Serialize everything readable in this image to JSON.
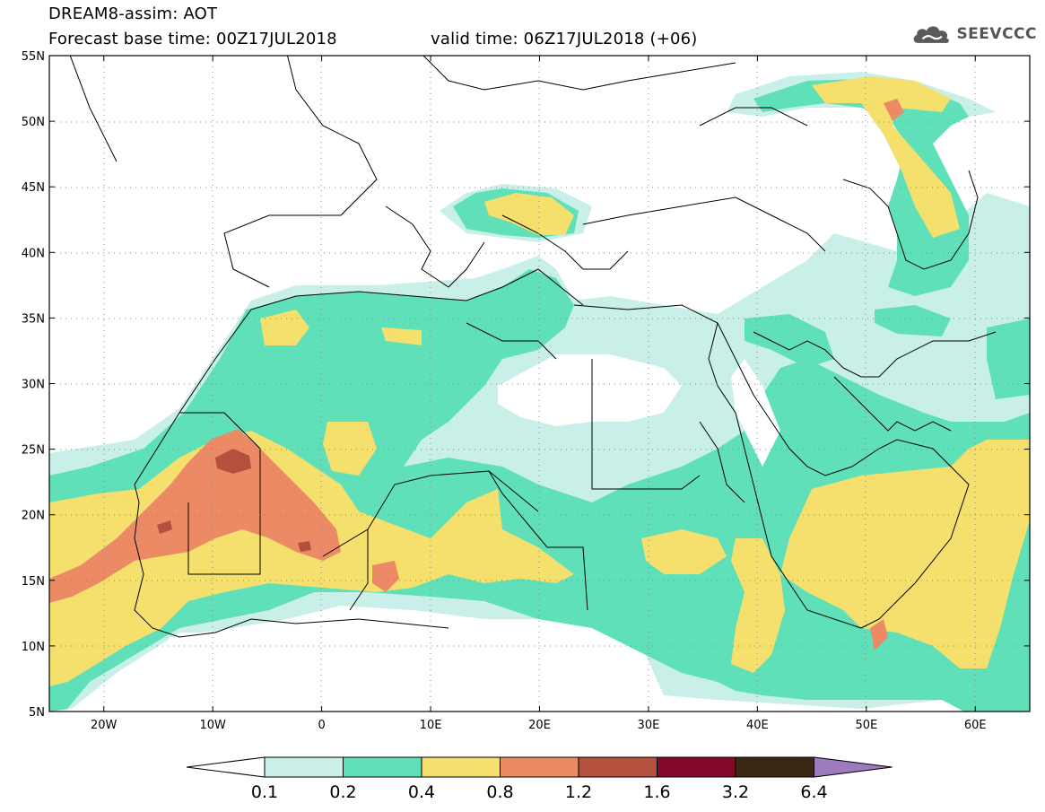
{
  "header": {
    "title": "DREAM8-assim: AOT",
    "base_time": "Forecast base time: 00Z17JUL2018",
    "valid_time": "valid time: 06Z17JUL2018 (+06)"
  },
  "logo": {
    "text": "SEEVCCC",
    "icon": "cloud-icon"
  },
  "map": {
    "projection": "lat-lon",
    "lon_range": [
      -25,
      65
    ],
    "lat_range": [
      5,
      55
    ],
    "lat_ticks": [
      "55N",
      "50N",
      "45N",
      "40N",
      "35N",
      "30N",
      "25N",
      "20N",
      "15N",
      "10N",
      "5N"
    ],
    "lon_ticks": [
      "20W",
      "10W",
      "0",
      "10E",
      "20E",
      "30E",
      "40E",
      "50E",
      "60E"
    ],
    "grid": "dotted"
  },
  "colorbar": {
    "labels": [
      "0.1",
      "0.2",
      "0.4",
      "0.8",
      "1.2",
      "1.6",
      "3.2",
      "6.4"
    ],
    "colors": [
      "#ffffff",
      "#c8f0e8",
      "#5fe0b8",
      "#f5e06e",
      "#eb8a64",
      "#b4503e",
      "#820a28",
      "#3c2814",
      "#9e7bbf"
    ]
  }
}
